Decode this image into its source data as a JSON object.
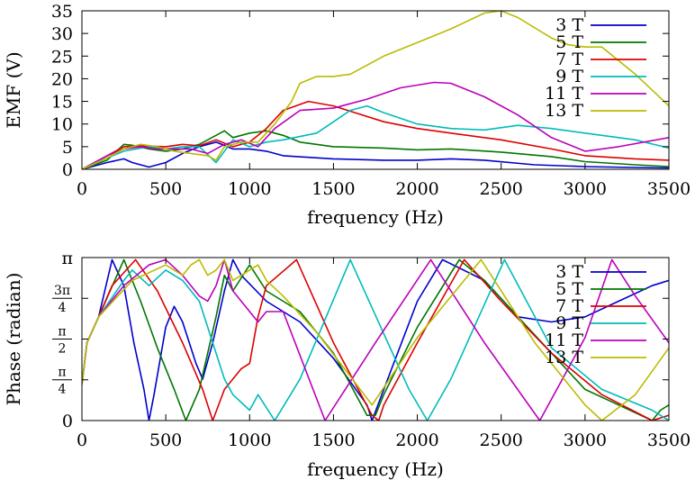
{
  "chart_data": [
    {
      "type": "line",
      "xlabel": "frequency (Hz)",
      "ylabel": "EMF (V)",
      "xlim": [
        0,
        3500
      ],
      "ylim": [
        0,
        35
      ],
      "xticks": [
        "0",
        "500",
        "1000",
        "1500",
        "2000",
        "2500",
        "3000",
        "3500"
      ],
      "yticks": [
        "0",
        "5",
        "10",
        "15",
        "20",
        "25",
        "30",
        "35"
      ],
      "grid": false,
      "legend_position": "top-right",
      "series": [
        {
          "name": "3 T",
          "color": "#0000cc",
          "x": [
            0,
            150,
            250,
            300,
            400,
            500,
            600,
            700,
            800,
            900,
            1000,
            1100,
            1200,
            1500,
            1800,
            2000,
            2200,
            2400,
            2700,
            3000,
            3300,
            3500
          ],
          "y": [
            0,
            1.5,
            2.3,
            1.5,
            0.5,
            1.5,
            3.5,
            5,
            6,
            4.5,
            4.5,
            4,
            3,
            2.3,
            2,
            2,
            2.3,
            2,
            1,
            0.6,
            0.4,
            0.3
          ]
        },
        {
          "name": "5 T",
          "color": "#007700",
          "x": [
            0,
            150,
            250,
            300,
            400,
            500,
            600,
            700,
            800,
            850,
            900,
            1000,
            1100,
            1200,
            1300,
            1500,
            1800,
            2000,
            2200,
            2500,
            2800,
            3000,
            3300,
            3500
          ],
          "y": [
            0,
            2,
            5.5,
            5.3,
            4.5,
            4,
            4.5,
            5.5,
            7.5,
            8.5,
            7,
            8,
            8.5,
            7.5,
            6,
            5,
            4.7,
            4.3,
            4.5,
            3.8,
            2.8,
            1.7,
            1,
            0.6
          ]
        },
        {
          "name": "7 T",
          "color": "#dd0000",
          "x": [
            0,
            150,
            250,
            350,
            500,
            600,
            700,
            800,
            900,
            1000,
            1100,
            1200,
            1350,
            1500,
            1800,
            2000,
            2200,
            2500,
            2800,
            3000,
            3300,
            3500
          ],
          "y": [
            0,
            3,
            5,
            5.2,
            5,
            5.5,
            5.2,
            6.5,
            5,
            6,
            9,
            13,
            15,
            14,
            10.5,
            9,
            8,
            6.5,
            4.5,
            3,
            2.3,
            2
          ]
        },
        {
          "name": "9 T",
          "color": "#00bbbb",
          "x": [
            0,
            150,
            250,
            400,
            500,
            600,
            700,
            800,
            900,
            1000,
            1100,
            1200,
            1400,
            1600,
            1700,
            1800,
            2000,
            2200,
            2400,
            2600,
            2800,
            3000,
            3300,
            3500
          ],
          "y": [
            0,
            2.5,
            4,
            5,
            4.5,
            5,
            5,
            1.5,
            6.5,
            5,
            6,
            6.5,
            8,
            13,
            14,
            12.5,
            10,
            9,
            8.7,
            9.7,
            9,
            8,
            6.5,
            4.7
          ]
        },
        {
          "name": "11 T",
          "color": "#bb00bb",
          "x": [
            0,
            150,
            250,
            350,
            450,
            550,
            650,
            750,
            850,
            950,
            1050,
            1150,
            1300,
            1500,
            1700,
            1900,
            2100,
            2200,
            2400,
            2600,
            2800,
            3000,
            3200,
            3500
          ],
          "y": [
            0,
            3,
            4.5,
            5,
            4.5,
            4.5,
            4.5,
            3.5,
            5.5,
            6.5,
            5,
            9,
            13,
            13.5,
            15.5,
            18,
            19.2,
            19,
            16,
            12,
            7,
            4,
            5,
            7
          ]
        },
        {
          "name": "13 T",
          "color": "#bbbb00",
          "x": [
            0,
            150,
            250,
            350,
            450,
            550,
            650,
            750,
            800,
            850,
            950,
            1050,
            1150,
            1250,
            1300,
            1400,
            1500,
            1600,
            1800,
            2000,
            2200,
            2400,
            2500,
            2600,
            2800,
            2900,
            3000,
            3100,
            3300,
            3500
          ],
          "y": [
            0,
            2.5,
            4.5,
            5.5,
            5,
            4,
            3.5,
            3,
            2,
            5,
            6,
            6,
            10,
            15,
            19,
            20.5,
            20.5,
            21,
            25,
            28,
            31,
            34.5,
            35,
            33.5,
            29,
            27.5,
            27,
            27,
            21,
            14
          ]
        }
      ]
    },
    {
      "type": "line",
      "xlabel": "frequency (Hz)",
      "ylabel": "Phase (radian)",
      "xlim": [
        0,
        3500
      ],
      "ylim": [
        0,
        3.14159
      ],
      "xticks": [
        "0",
        "500",
        "1000",
        "1500",
        "2000",
        "2500",
        "3000",
        "3500"
      ],
      "yticks": [
        {
          "value": 0,
          "label": "0"
        },
        {
          "value": 0.7854,
          "num": "π",
          "den": "4"
        },
        {
          "value": 1.5708,
          "num": "π",
          "den": "2"
        },
        {
          "value": 2.3562,
          "num": "3π",
          "den": "4"
        },
        {
          "value": 3.14159,
          "label": "π"
        }
      ],
      "grid": false,
      "legend_position": "top-right",
      "series": [
        {
          "name": "3 T",
          "color": "#0000cc",
          "x": [
            0,
            30,
            100,
            180,
            250,
            310,
            370,
            400,
            430,
            500,
            550,
            600,
            680,
            720,
            780,
            850,
            900,
            950,
            1100,
            1300,
            1500,
            1700,
            1730,
            1800,
            2000,
            2150,
            2400,
            2600,
            2800,
            3000,
            3200,
            3400,
            3500
          ],
          "y": [
            0.7,
            1.5,
            2.0,
            3.1,
            2.6,
            1.5,
            0.6,
            0,
            0.5,
            1.8,
            2.2,
            1.9,
            1.1,
            0.8,
            1.5,
            2.5,
            3.1,
            2.8,
            2.3,
            1.9,
            1.2,
            0.3,
            0,
            0.6,
            2.3,
            3.1,
            2.7,
            2.0,
            1.9,
            2.0,
            2.3,
            2.6,
            2.7
          ]
        },
        {
          "name": "5 T",
          "color": "#007700",
          "x": [
            0,
            30,
            100,
            250,
            350,
            450,
            550,
            620,
            700,
            800,
            850,
            900,
            1000,
            1100,
            1300,
            1500,
            1700,
            1750,
            1800,
            2000,
            2250,
            2400,
            2600,
            2800,
            3000,
            3200,
            3400,
            3450,
            3500
          ],
          "y": [
            0.7,
            1.5,
            2.0,
            3.1,
            2.3,
            1.4,
            0.6,
            0,
            0.6,
            2.0,
            2.8,
            2.5,
            3.0,
            2.5,
            2.1,
            1.3,
            0.1,
            0.1,
            0.5,
            1.8,
            3.1,
            2.7,
            2.0,
            1.3,
            0.6,
            0.3,
            0,
            0.2,
            0.3
          ]
        },
        {
          "name": "7 T",
          "color": "#dd0000",
          "x": [
            0,
            30,
            100,
            180,
            320,
            450,
            600,
            720,
            780,
            850,
            900,
            950,
            1000,
            1050,
            1100,
            1280,
            1500,
            1730,
            1770,
            1800,
            2000,
            2280,
            2500,
            2800,
            3100,
            3400,
            3500
          ],
          "y": [
            0.7,
            1.5,
            2.0,
            2.6,
            3.1,
            2.5,
            1.5,
            0.6,
            0,
            0.6,
            0.8,
            1.0,
            1.1,
            2.0,
            2.6,
            3.1,
            1.5,
            0.1,
            0,
            0.3,
            1.5,
            3.1,
            2.3,
            1.3,
            0.5,
            0,
            0.1
          ]
        },
        {
          "name": "9 T",
          "color": "#00bbbb",
          "x": [
            0,
            30,
            100,
            250,
            300,
            400,
            500,
            600,
            700,
            800,
            850,
            900,
            1000,
            1050,
            1150,
            1300,
            1600,
            1950,
            2060,
            2200,
            2520,
            2800,
            3100,
            3400,
            3500
          ],
          "y": [
            0.7,
            1.5,
            2.0,
            2.7,
            2.9,
            2.6,
            2.9,
            2.7,
            2.3,
            1.3,
            0.8,
            0.5,
            0.2,
            0.5,
            0,
            0.8,
            3.1,
            0.6,
            0,
            0.8,
            3.1,
            1.4,
            0.6,
            0.2,
            0
          ]
        },
        {
          "name": "11 T",
          "color": "#bb00bb",
          "x": [
            0,
            30,
            100,
            250,
            400,
            500,
            600,
            700,
            750,
            800,
            850,
            900,
            1000,
            1050,
            1100,
            1200,
            1450,
            1750,
            2080,
            2400,
            2730,
            3000,
            3160,
            3300,
            3500
          ],
          "y": [
            0.7,
            1.5,
            2.0,
            2.6,
            3.0,
            3.1,
            2.8,
            2.4,
            2.3,
            2.6,
            3.1,
            2.5,
            2.1,
            1.9,
            2.1,
            2.1,
            0,
            1.5,
            3.1,
            1.5,
            0,
            1.6,
            3.1,
            2.4,
            1.5
          ]
        },
        {
          "name": "13 T",
          "color": "#bbbb00",
          "x": [
            0,
            30,
            100,
            300,
            500,
            600,
            650,
            700,
            750,
            800,
            850,
            900,
            1000,
            1050,
            1100,
            1200,
            1400,
            1730,
            2000,
            2380,
            2700,
            3000,
            3100,
            3300,
            3500
          ],
          "y": [
            0.7,
            1.5,
            2.0,
            2.7,
            3.0,
            2.8,
            3.0,
            3.1,
            2.8,
            2.9,
            3.1,
            2.7,
            2.9,
            3.0,
            2.7,
            2.4,
            1.7,
            0.3,
            1.6,
            3.1,
            1.5,
            0.3,
            0,
            0.5,
            1.4
          ]
        }
      ]
    }
  ]
}
